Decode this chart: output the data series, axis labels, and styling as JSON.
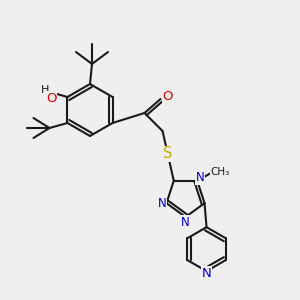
{
  "bg_color": "#efefef",
  "bond_color": "#1a1a1a",
  "bond_width": 1.5,
  "atom_colors": {
    "O": "#dd0000",
    "N": "#0000cc",
    "S": "#ccaa00",
    "C": "#1a1a1a"
  },
  "font_size": 8.5,
  "ring_r": 26,
  "pyr_r": 22,
  "tri_r": 20
}
